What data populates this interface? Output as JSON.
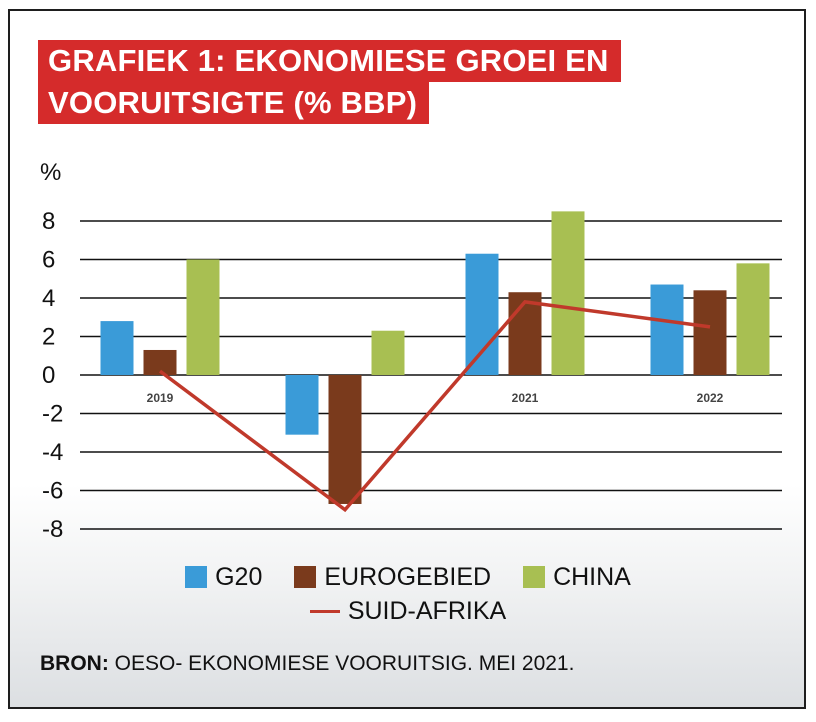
{
  "title": {
    "line1": "GRAFIEK 1: EKONOMIESE GROEI EN",
    "line2": "VOORUITSIGTE (% BBP)"
  },
  "colors": {
    "title_bg": "#d52b2b",
    "g20": "#3a9bd8",
    "eurogebied": "#7a3a1c",
    "china": "#a8bf52",
    "suid_afrika": "#c0392b",
    "grid": "#111111"
  },
  "legend": {
    "g20": "G20",
    "eurogebied": "EUROGEBIED",
    "china": "CHINA",
    "suid_afrika": "SUID-AFRIKA"
  },
  "source": {
    "prefix": "BRON:",
    "text": " OESO- EKONOMIESE VOORUITSIG. MEI 2021."
  },
  "chart_data": {
    "type": "bar",
    "ylabel": "%",
    "ylim": [
      -8,
      8
    ],
    "yticks": [
      8,
      6,
      4,
      2,
      0,
      -2,
      -4,
      -6,
      -8
    ],
    "categories": [
      "2019",
      "2020",
      "2021",
      "2022"
    ],
    "series": [
      {
        "name": "G20",
        "type": "bar",
        "color": "#3a9bd8",
        "values": [
          2.8,
          -3.1,
          6.3,
          4.7
        ]
      },
      {
        "name": "EUROGEBIED",
        "type": "bar",
        "color": "#7a3a1c",
        "values": [
          1.3,
          -6.7,
          4.3,
          4.4
        ]
      },
      {
        "name": "CHINA",
        "type": "bar",
        "color": "#a8bf52",
        "values": [
          6.0,
          2.3,
          8.5,
          5.8
        ]
      },
      {
        "name": "SUID-AFRIKA",
        "type": "line",
        "color": "#c0392b",
        "values": [
          0.2,
          -7.0,
          3.8,
          2.5
        ]
      }
    ],
    "grid": true,
    "legend_position": "bottom"
  }
}
